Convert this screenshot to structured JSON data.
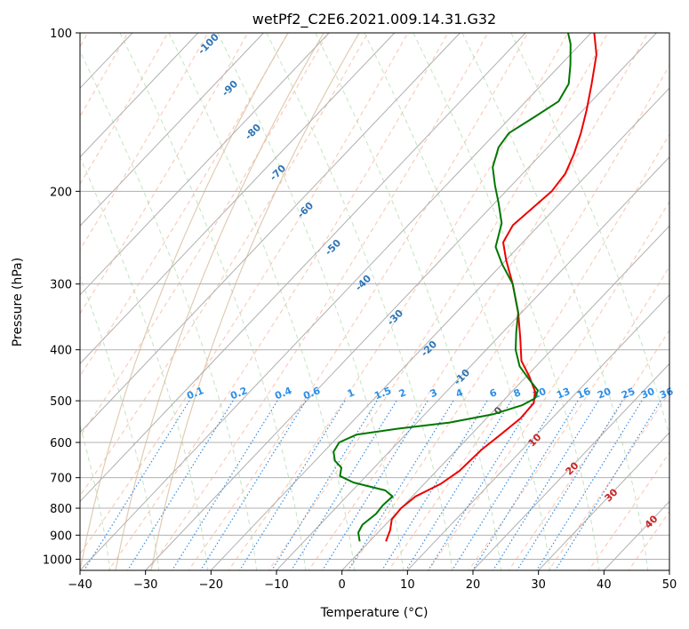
{
  "chart_data": {
    "type": "line",
    "title": "wetPf2_C2E6.2021.009.14.31.G32",
    "xlabel": "Temperature (°C)",
    "ylabel": "Pressure (hPa)",
    "xlim": [
      -40,
      50
    ],
    "ylim": [
      1050,
      100
    ],
    "y_scale": "log",
    "grid": true,
    "x_ticks": [
      -40,
      -30,
      -20,
      -10,
      0,
      10,
      20,
      30,
      40,
      50
    ],
    "y_ticks": [
      100,
      200,
      300,
      400,
      500,
      600,
      700,
      800,
      900,
      1000
    ],
    "series": [
      {
        "name": "temperature",
        "color": "#ee0000",
        "points": [
          {
            "p": 925,
            "t": 2.5
          },
          {
            "p": 880,
            "t": 1.5
          },
          {
            "p": 840,
            "t": 0.2
          },
          {
            "p": 800,
            "t": 0.0
          },
          {
            "p": 760,
            "t": 0.5
          },
          {
            "p": 720,
            "t": 2.5
          },
          {
            "p": 680,
            "t": 3.5
          },
          {
            "p": 620,
            "t": 3.8
          },
          {
            "p": 580,
            "t": 4.5
          },
          {
            "p": 540,
            "t": 5.2
          },
          {
            "p": 505,
            "t": 5.0
          },
          {
            "p": 480,
            "t": 3.5
          },
          {
            "p": 450,
            "t": 0.5
          },
          {
            "p": 420,
            "t": -3.0
          },
          {
            "p": 380,
            "t": -6.5
          },
          {
            "p": 340,
            "t": -10.5
          },
          {
            "p": 300,
            "t": -15.5
          },
          {
            "p": 270,
            "t": -20.0
          },
          {
            "p": 250,
            "t": -23.0
          },
          {
            "p": 232,
            "t": -24.0
          },
          {
            "p": 215,
            "t": -23.5
          },
          {
            "p": 200,
            "t": -23.0
          },
          {
            "p": 185,
            "t": -23.5
          },
          {
            "p": 170,
            "t": -25.0
          },
          {
            "p": 155,
            "t": -27.0
          },
          {
            "p": 140,
            "t": -29.5
          },
          {
            "p": 125,
            "t": -32.5
          },
          {
            "p": 110,
            "t": -36.0
          },
          {
            "p": 100,
            "t": -39.5
          }
        ]
      },
      {
        "name": "dewpoint",
        "color": "#007700",
        "points": [
          {
            "p": 925,
            "t": -1.5
          },
          {
            "p": 890,
            "t": -3.0
          },
          {
            "p": 860,
            "t": -3.5
          },
          {
            "p": 820,
            "t": -3.0
          },
          {
            "p": 790,
            "t": -3.2
          },
          {
            "p": 760,
            "t": -3.0
          },
          {
            "p": 740,
            "t": -5.0
          },
          {
            "p": 715,
            "t": -11.0
          },
          {
            "p": 695,
            "t": -14.0
          },
          {
            "p": 670,
            "t": -15.0
          },
          {
            "p": 650,
            "t": -17.0
          },
          {
            "p": 625,
            "t": -18.5
          },
          {
            "p": 600,
            "t": -19.0
          },
          {
            "p": 580,
            "t": -17.5
          },
          {
            "p": 565,
            "t": -12.0
          },
          {
            "p": 550,
            "t": -5.0
          },
          {
            "p": 530,
            "t": 0.5
          },
          {
            "p": 510,
            "t": 3.5
          },
          {
            "p": 495,
            "t": 4.5
          },
          {
            "p": 478,
            "t": 3.8
          },
          {
            "p": 455,
            "t": 0.8
          },
          {
            "p": 430,
            "t": -2.5
          },
          {
            "p": 400,
            "t": -5.5
          },
          {
            "p": 370,
            "t": -8.0
          },
          {
            "p": 340,
            "t": -10.5
          },
          {
            "p": 300,
            "t": -15.5
          },
          {
            "p": 275,
            "t": -20.0
          },
          {
            "p": 255,
            "t": -23.5
          },
          {
            "p": 230,
            "t": -26.0
          },
          {
            "p": 210,
            "t": -29.5
          },
          {
            "p": 195,
            "t": -32.5
          },
          {
            "p": 180,
            "t": -35.5
          },
          {
            "p": 165,
            "t": -37.5
          },
          {
            "p": 155,
            "t": -38.0
          },
          {
            "p": 145,
            "t": -36.5
          },
          {
            "p": 135,
            "t": -35.0
          },
          {
            "p": 125,
            "t": -36.0
          },
          {
            "p": 115,
            "t": -38.5
          },
          {
            "p": 105,
            "t": -41.5
          },
          {
            "p": 100,
            "t": -43.5
          }
        ]
      }
    ],
    "annotations": {
      "isotherm_labels": [
        "-100",
        "-90",
        "-80",
        "-70",
        "-60",
        "-50",
        "-40",
        "-30",
        "-20",
        "-10"
      ],
      "mixing_ratio_labels": [
        "0.1",
        "0.2",
        "0.4",
        "0.6",
        "1",
        "1.5",
        "2",
        "3",
        "4",
        "6",
        "8",
        "10",
        "13",
        "16",
        "20",
        "25",
        "30",
        "36"
      ],
      "moist_adiabat_labels": [
        "0",
        "10",
        "20",
        "30",
        "40"
      ]
    }
  }
}
